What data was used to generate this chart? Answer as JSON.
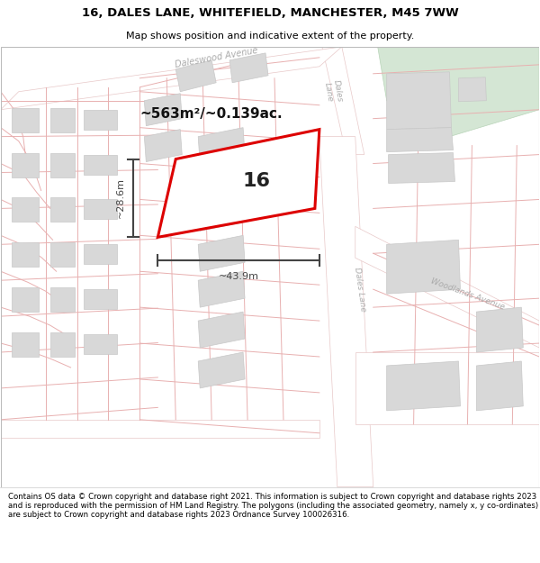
{
  "title_line1": "16, DALES LANE, WHITEFIELD, MANCHESTER, M45 7WW",
  "title_line2": "Map shows position and indicative extent of the property.",
  "footer_text": "Contains OS data © Crown copyright and database right 2021. This information is subject to Crown copyright and database rights 2023 and is reproduced with the permission of HM Land Registry. The polygons (including the associated geometry, namely x, y co-ordinates) are subject to Crown copyright and database rights 2023 Ordnance Survey 100026316.",
  "area_text": "~563m²/~0.139ac.",
  "width_text": "~43.9m",
  "height_text": "~28.6m",
  "label_16": "16",
  "map_bg": "#f9f6f6",
  "building_fill": "#d8d8d8",
  "building_edge": "#c8c8c8",
  "road_fill": "#ffffff",
  "road_edge": "#e8c8c8",
  "highlight_fill": "#ffffff",
  "highlight_edge": "#dd0000",
  "green_fill": "#d4e6d4",
  "pink_line": "#e8b0b0",
  "dim_color": "#444444",
  "label_road_color": "#aaaaaa",
  "title_fontsize": 9.5,
  "subtitle_fontsize": 8.0,
  "footer_fontsize": 6.2,
  "area_fontsize": 11,
  "dim_fontsize": 8,
  "label16_fontsize": 16
}
